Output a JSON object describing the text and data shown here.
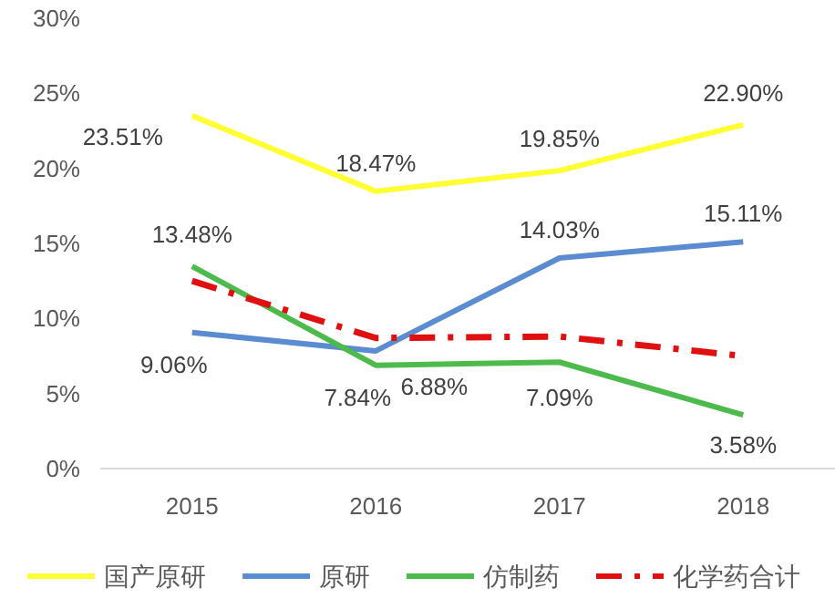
{
  "chart_data": {
    "type": "line",
    "categories": [
      "2015",
      "2016",
      "2017",
      "2018"
    ],
    "ylim": [
      0,
      30
    ],
    "yticks": [
      {
        "value": 0,
        "label": "0%"
      },
      {
        "value": 5,
        "label": "5%"
      },
      {
        "value": 10,
        "label": "10%"
      },
      {
        "value": 15,
        "label": "15%"
      },
      {
        "value": 20,
        "label": "20%"
      },
      {
        "value": 25,
        "label": "25%"
      },
      {
        "value": 30,
        "label": "30%"
      }
    ],
    "grid": false,
    "legend": "bottom",
    "series": [
      {
        "name": "国产原研",
        "color": "#ffff33",
        "values": [
          23.51,
          18.47,
          19.85,
          22.9
        ],
        "value_labels": [
          "23.51%",
          "18.47%",
          "19.85%",
          "22.90%"
        ]
      },
      {
        "name": "原研",
        "color": "#5b8bd0",
        "values": [
          9.06,
          7.84,
          14.03,
          15.11
        ],
        "value_labels": [
          "9.06%",
          "7.84%",
          "14.03%",
          "15.11%"
        ]
      },
      {
        "name": "仿制药",
        "color": "#4cbb4c",
        "values": [
          13.48,
          6.88,
          7.09,
          3.58
        ],
        "value_labels": [
          "13.48%",
          "6.88%",
          "7.09%",
          "3.58%"
        ]
      },
      {
        "name": "化学药合计",
        "color": "#e01010",
        "line_style": "dashed",
        "values": [
          12.5,
          8.7,
          8.8,
          7.5
        ]
      }
    ]
  }
}
